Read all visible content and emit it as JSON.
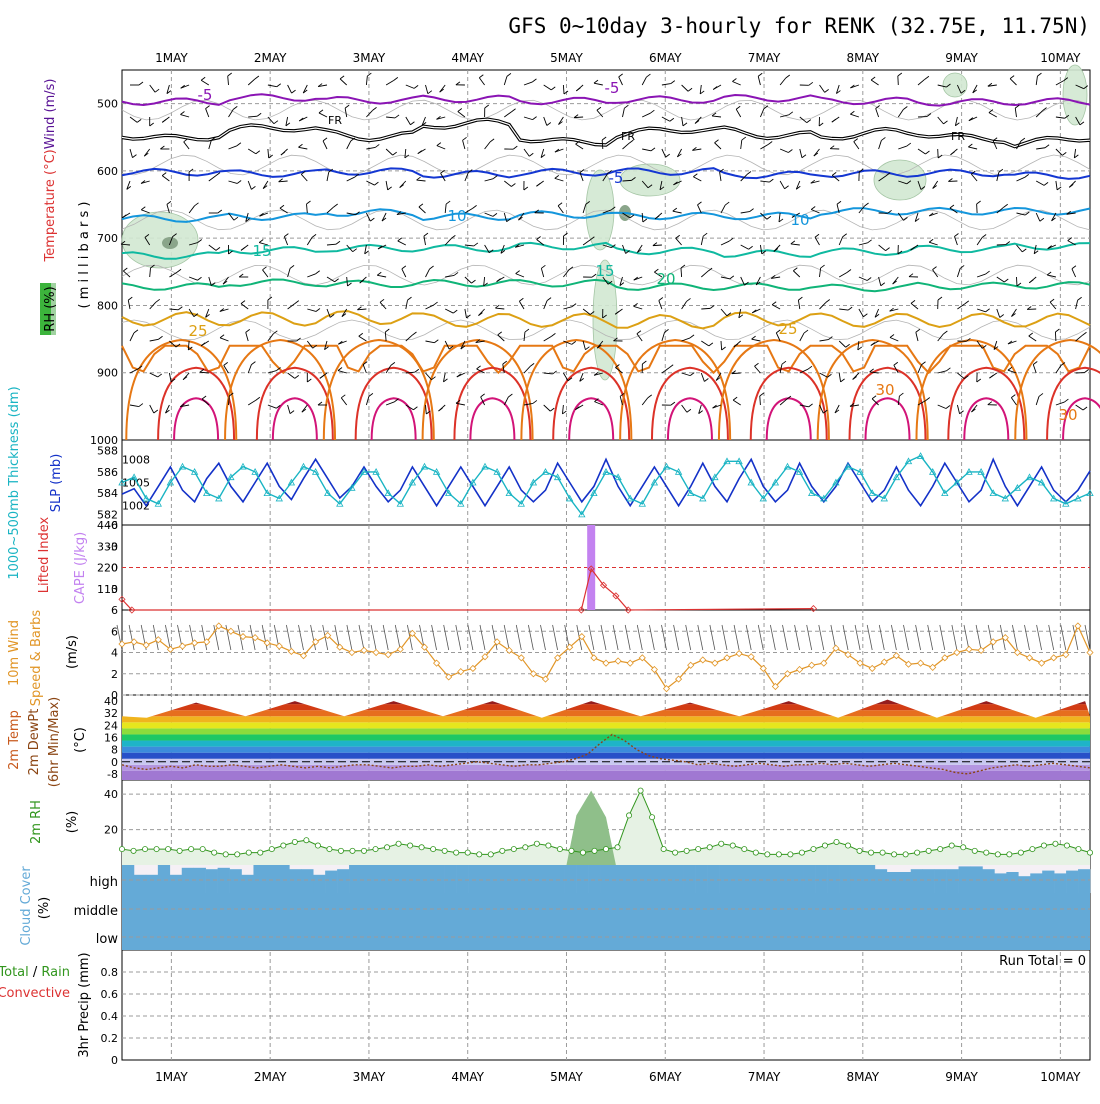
{
  "title": "GFS 0~10day 3-hourly for RENK (32.75E, 11.75N)",
  "date_labels": [
    "1MAY",
    "2MAY",
    "3MAY",
    "4MAY",
    "5MAY",
    "6MAY",
    "7MAY",
    "8MAY",
    "9MAY",
    "10MAY"
  ],
  "colors": {
    "purple": "#8a14b4",
    "black": "#000000",
    "blue": "#1437d2",
    "lightblue": "#1496dc",
    "teal": "#0fb9a0",
    "green": "#10b478",
    "gold": "#dca014",
    "orange": "#e67814",
    "red": "#dc3228",
    "magenta": "#d21478",
    "rhfill": "#d2e8d2",
    "rhdark": "#8aa58a",
    "slp": "#1432c8",
    "thick": "#19b4c3",
    "li": "#dc3232",
    "cape": "#c382f0",
    "wind": "#e19628",
    "rh2m": "#32961e",
    "cloud": "#64aad7",
    "cloudbg": "#f5f0f5"
  },
  "chart_data": [
    {
      "type": "line",
      "panel": "upper_air",
      "ylabel": "Temperature (°C) Wind (m/s) RH (%) (millibars)",
      "ylabel_parts": {
        "rh": "RH (%)",
        "temperature": "Temperature (°C)",
        "wind": "Wind (m/s)",
        "millibars": "( m i l l i b a r s )"
      },
      "yticks": [
        500,
        600,
        700,
        800,
        900,
        1000
      ],
      "ylim": [
        1000,
        450
      ],
      "isotherm_labels": [
        "-5",
        "-5",
        "FR",
        "FR",
        "FR",
        "-5",
        "10",
        "10",
        "15",
        "15",
        "20",
        "25",
        "25",
        "30",
        "30"
      ],
      "series": [
        {
          "name": "-5",
          "color_key": "purple",
          "values": [
            497,
            491,
            495,
            493,
            496,
            494,
            492,
            496,
            498,
            497
          ]
        },
        {
          "name": "FR",
          "color_key": "black",
          "values": [
            546,
            541,
            544,
            534,
            552,
            544,
            542,
            548,
            547,
            556
          ]
        },
        {
          "name": "-5",
          "color_key": "blue",
          "values": [
            602,
            604,
            601,
            605,
            602,
            601,
            606,
            604,
            603,
            607
          ]
        },
        {
          "name": "10",
          "color_key": "lightblue",
          "values": [
            671,
            668,
            662,
            668,
            665,
            667,
            667,
            660,
            660,
            660
          ]
        },
        {
          "name": "15",
          "color_key": "teal",
          "values": [
            726,
            718,
            715,
            715,
            712,
            719,
            723,
            720,
            716,
            712
          ]
        },
        {
          "name": "20",
          "color_key": "green",
          "values": [
            772,
            766,
            768,
            767,
            767,
            772,
            772,
            774,
            771,
            770
          ]
        },
        {
          "name": "25",
          "color_key": "gold",
          "values": [
            820,
            820,
            818,
            822,
            822,
            824,
            820,
            822,
            822,
            822
          ]
        },
        {
          "name": "30",
          "color_key": "orange",
          "values": [
            860,
            860,
            860,
            860,
            860,
            860,
            860,
            860,
            860,
            860
          ]
        }
      ]
    },
    {
      "type": "line",
      "panel": "thickness_slp",
      "ylabel_left": "1000~500mb Thickness (dm)",
      "ylabel_right": "SLP (mb)",
      "yticks_left": [
        582,
        584,
        586,
        588
      ],
      "yticks_right": [
        1002,
        1005,
        1008
      ],
      "series": [
        {
          "name": "SLP",
          "color_key": "slp",
          "values": [
            1003.5,
            1004.2,
            1002.0,
            1004.5,
            1007.0,
            1004.0,
            1002.5,
            1005.5,
            1007.5,
            1004.5,
            1002.5,
            1005.0,
            1007.5,
            1004.5,
            1002.8,
            1005.5,
            1008.0,
            1005.5,
            1003.0,
            1004.5,
            1007.0,
            1004.5,
            1002.5,
            1004.0,
            1007.0,
            1004.5,
            1002.0,
            1004.5,
            1007.0,
            1004.5,
            1002.0,
            1004.5,
            1007.0,
            1004.0,
            1002.5,
            1004.0,
            1007.5,
            1005.0,
            1002.5,
            1004.5,
            1008.0,
            1004.5,
            1002.0,
            1004.5,
            1007.0,
            1004.5,
            1002.0,
            1004.5,
            1007.5,
            1004.5,
            1002.5,
            1005.5,
            1008.0,
            1004.5,
            1002.5,
            1004.0,
            1007.5,
            1004.5,
            1002.5,
            1004.5,
            1007.5,
            1005.0,
            1002.5,
            1004.0,
            1007.0,
            1004.0,
            1002.0,
            1004.5,
            1007.5,
            1005.0,
            1002.5,
            1004.0,
            1008.0,
            1004.5,
            1002.0,
            1004.5,
            1007.0,
            1004.0,
            1002.5,
            1004.0,
            1006.5
          ]
        },
        {
          "name": "Thickness",
          "color_key": "thick",
          "values": [
            585.0,
            585.5,
            583.5,
            583.0,
            585.0,
            586.5,
            586.0,
            584.0,
            583.5,
            585.5,
            586.5,
            586.0,
            584.0,
            583.5,
            585.0,
            586.5,
            586.0,
            584.0,
            583.0,
            584.5,
            586.0,
            586.0,
            584.0,
            583.0,
            585.0,
            586.5,
            586.0,
            584.0,
            583.0,
            585.0,
            586.5,
            586.0,
            584.0,
            583.0,
            585.0,
            586.0,
            585.5,
            583.5,
            582.0,
            584.0,
            586.0,
            585.5,
            583.5,
            583.0,
            585.0,
            586.5,
            586.0,
            584.0,
            583.5,
            585.5,
            587.0,
            587.0,
            585.0,
            583.5,
            585.0,
            586.5,
            586.0,
            584.0,
            583.5,
            585.0,
            586.5,
            586.0,
            584.0,
            583.5,
            585.5,
            587.0,
            587.5,
            586.0,
            584.0,
            585.0,
            586.0,
            586.0,
            584.0,
            583.5,
            584.5,
            585.5,
            585.0,
            583.5,
            583.0,
            583.5,
            584.0
          ]
        }
      ]
    },
    {
      "type": "bar",
      "panel": "stability",
      "ylabel_left": "Lifted Index",
      "ylabel_right": "CAPE (J/kg)",
      "yticks_left": [
        -6,
        -3,
        0,
        3,
        6
      ],
      "yticks_right": [
        110,
        220,
        330,
        440
      ],
      "cape_bar": {
        "day": 5.25,
        "value": 440
      },
      "li_series": [
        {
          "day": 0.5,
          "li": 4.5
        },
        {
          "day": 0.6,
          "li": 6.0
        },
        {
          "day": 5.15,
          "li": 6.0
        },
        {
          "day": 5.25,
          "li": 0.2
        },
        {
          "day": 5.375,
          "li": 2.5
        },
        {
          "day": 5.5,
          "li": 4.0
        },
        {
          "day": 5.625,
          "li": 6.0
        },
        {
          "day": 7.5,
          "li": 5.8
        }
      ]
    },
    {
      "type": "line",
      "panel": "wind10m",
      "ylabel": "10m Wind Speed & Barbs (m/s)",
      "yticks": [
        0,
        2,
        4,
        6
      ],
      "ylim": [
        0,
        8
      ],
      "series": [
        {
          "name": "10m Wind Speed",
          "color_key": "wind",
          "values": [
            4.8,
            5.0,
            4.7,
            5.2,
            4.3,
            4.6,
            4.9,
            5.0,
            6.5,
            6.0,
            5.5,
            5.4,
            4.9,
            4.6,
            4.1,
            3.7,
            5.0,
            5.6,
            4.5,
            4.0,
            4.2,
            4.0,
            3.8,
            4.3,
            5.8,
            4.5,
            3.0,
            1.7,
            2.2,
            2.5,
            3.6,
            5.0,
            4.2,
            3.5,
            2.0,
            1.5,
            3.5,
            4.5,
            5.5,
            3.5,
            3.0,
            3.2,
            3.0,
            3.5,
            2.4,
            0.6,
            1.5,
            2.8,
            3.3,
            3.0,
            3.5,
            3.9,
            3.6,
            2.5,
            0.8,
            2.0,
            2.4,
            2.8,
            3.0,
            4.4,
            3.8,
            3.0,
            2.5,
            3.1,
            3.7,
            2.9,
            3.0,
            2.6,
            3.5,
            4.0,
            4.3,
            4.2,
            5.0,
            5.4,
            4.0,
            3.5,
            3.0,
            3.5,
            3.8,
            6.5,
            4.0
          ]
        }
      ]
    },
    {
      "type": "area",
      "panel": "temp2m",
      "ylabel": "2m Temp 2m DewPt (6hr Min/Max) (°C)",
      "ylabel_parts": {
        "temp": "2m Temp",
        "dewpt": "2m DewPt",
        "minmax": "(6hr Min/Max)",
        "unit": "(°C)"
      },
      "yticks": [
        -8,
        0,
        8,
        16,
        24,
        32,
        40
      ],
      "ylim": [
        -12,
        44
      ],
      "temp_max_daily": [
        39,
        40,
        40,
        40,
        40,
        39,
        40,
        41,
        40,
        40
      ],
      "temp_min_daily": [
        29,
        30,
        30,
        30,
        29,
        30,
        30,
        29,
        29,
        29
      ],
      "dewpoint_series": [
        -2,
        -4,
        -5,
        -4,
        -3,
        -4,
        -2,
        -3,
        -3,
        -2,
        -3,
        -4,
        -3,
        -2,
        -3,
        -4,
        -3,
        -4,
        -3,
        -2,
        -2,
        -3,
        -4,
        -3,
        -3,
        -2,
        -3,
        -2,
        -1,
        0,
        -1,
        -2,
        -3,
        -2,
        -2,
        -1,
        0,
        2,
        5,
        12,
        18,
        14,
        8,
        4,
        2,
        1,
        0,
        -2,
        -1,
        -2,
        -3,
        -2,
        -1,
        -2,
        -3,
        -2,
        -2,
        -1,
        -2,
        -1,
        -2,
        -3,
        -2,
        -1,
        -2,
        -3,
        -4,
        -5,
        -7,
        -8,
        -6,
        -4,
        -3,
        -2,
        -3,
        -2,
        -1,
        -2,
        -3,
        -4
      ]
    },
    {
      "type": "area",
      "panel": "rh2m",
      "ylabel": "2m RH (%)",
      "yticks": [
        20,
        40
      ],
      "ylim": [
        0,
        48
      ],
      "series": [
        {
          "name": "2m RH",
          "color_key": "rh2m",
          "values": [
            9,
            8,
            9,
            9,
            9,
            8,
            9,
            9,
            7,
            6,
            6,
            7,
            7,
            9,
            11,
            13,
            14,
            11,
            9,
            8,
            8,
            8,
            9,
            10,
            12,
            11,
            10,
            9,
            8,
            7,
            7,
            6,
            6,
            8,
            9,
            10,
            12,
            11,
            9,
            8,
            7,
            8,
            9,
            10,
            28,
            42,
            27,
            9,
            7,
            8,
            9,
            10,
            12,
            11,
            9,
            7,
            6,
            6,
            6,
            7,
            9,
            11,
            13,
            11,
            8,
            7,
            7,
            6,
            6,
            7,
            8,
            9,
            11,
            10,
            8,
            7,
            6,
            6,
            7,
            9,
            11,
            12,
            11,
            9,
            7
          ]
        }
      ]
    },
    {
      "type": "bar",
      "panel": "cloud",
      "ylabel": "Cloud Cover (%)",
      "ylabel_parts": {
        "name": "Cloud Cover",
        "unit": "(%)"
      },
      "levels": [
        "high",
        "middle",
        "low"
      ],
      "high_cover_percent": [
        100,
        65,
        65,
        100,
        65,
        90,
        90,
        85,
        90,
        85,
        65,
        100,
        100,
        100,
        85,
        85,
        65,
        80,
        85,
        100,
        100,
        100,
        100,
        100,
        100,
        100,
        100,
        100,
        100,
        100,
        100,
        100,
        100,
        100,
        100,
        100,
        100,
        100,
        100,
        100,
        100,
        100,
        100,
        100,
        100,
        100,
        100,
        100,
        100,
        100,
        100,
        100,
        100,
        100,
        100,
        100,
        100,
        100,
        100,
        100,
        100,
        100,
        100,
        85,
        75,
        75,
        85,
        85,
        85,
        85,
        95,
        95,
        85,
        70,
        75,
        60,
        70,
        80,
        70,
        80,
        85
      ]
    },
    {
      "type": "bar",
      "panel": "precip",
      "ylabel": "3hr Precip (mm)",
      "legend": "Total / Rain Convective",
      "legend_parts": {
        "total": "Total",
        "sep": " / ",
        "rain": "Rain",
        "convective": "Convective"
      },
      "run_total_label": "Run Total = 0",
      "yticks": [
        0,
        0.2,
        0.4,
        0.6,
        0.8
      ],
      "ylim": [
        0,
        1
      ],
      "values": []
    }
  ]
}
